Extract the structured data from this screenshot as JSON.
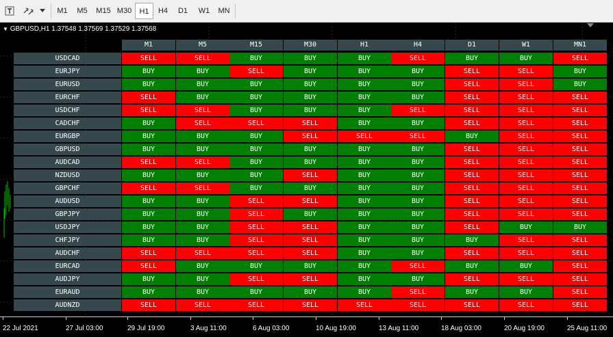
{
  "toolbar": {
    "timeframes": [
      "M1",
      "M5",
      "M15",
      "M30",
      "H1",
      "H4",
      "D1",
      "W1",
      "MN"
    ],
    "active_timeframe": "H1"
  },
  "chart": {
    "title": "GBPUSD,H1  1.37548 1.37569 1.37529 1.37568"
  },
  "table": {
    "columns": [
      "M1",
      "M5",
      "M15",
      "M30",
      "H1",
      "H4",
      "D1",
      "W1",
      "MN1"
    ],
    "rows": [
      {
        "symbol": "USDCAD",
        "signals": [
          "SELL",
          "SELL",
          "BUY",
          "BUY",
          "BUY",
          "SELL",
          "BUY",
          "BUY",
          "SELL"
        ]
      },
      {
        "symbol": "EURJPY",
        "signals": [
          "BUY",
          "BUY",
          "SELL",
          "BUY",
          "BUY",
          "BUY",
          "SELL",
          "SELL",
          "BUY"
        ]
      },
      {
        "symbol": "EURUSD",
        "signals": [
          "BUY",
          "BUY",
          "BUY",
          "BUY",
          "BUY",
          "BUY",
          "SELL",
          "SELL",
          "BUY"
        ]
      },
      {
        "symbol": "EURCHF",
        "signals": [
          "SELL",
          "BUY",
          "BUY",
          "BUY",
          "BUY",
          "BUY",
          "SELL",
          "SELL",
          "SELL"
        ]
      },
      {
        "symbol": "USDCHF",
        "signals": [
          "SELL",
          "SELL",
          "BUY",
          "BUY",
          "BUY",
          "SELL",
          "SELL",
          "SELL",
          "SELL"
        ]
      },
      {
        "symbol": "CADCHF",
        "signals": [
          "BUY",
          "SELL",
          "SELL",
          "SELL",
          "BUY",
          "BUY",
          "SELL",
          "SELL",
          "SELL"
        ]
      },
      {
        "symbol": "EURGBP",
        "signals": [
          "BUY",
          "BUY",
          "BUY",
          "SELL",
          "SELL",
          "SELL",
          "BUY",
          "SELL",
          "SELL"
        ]
      },
      {
        "symbol": "GBPUSD",
        "signals": [
          "BUY",
          "BUY",
          "BUY",
          "BUY",
          "BUY",
          "BUY",
          "SELL",
          "SELL",
          "SELL"
        ]
      },
      {
        "symbol": "AUDCAD",
        "signals": [
          "SELL",
          "SELL",
          "BUY",
          "BUY",
          "BUY",
          "BUY",
          "SELL",
          "SELL",
          "SELL"
        ]
      },
      {
        "symbol": "NZDUSD",
        "signals": [
          "BUY",
          "BUY",
          "BUY",
          "SELL",
          "BUY",
          "BUY",
          "SELL",
          "SELL",
          "SELL"
        ]
      },
      {
        "symbol": "GBPCHF",
        "signals": [
          "SELL",
          "SELL",
          "BUY",
          "BUY",
          "BUY",
          "BUY",
          "SELL",
          "SELL",
          "SELL"
        ]
      },
      {
        "symbol": "AUDUSD",
        "signals": [
          "BUY",
          "BUY",
          "SELL",
          "SELL",
          "BUY",
          "BUY",
          "SELL",
          "SELL",
          "SELL"
        ]
      },
      {
        "symbol": "GBPJPY",
        "signals": [
          "BUY",
          "BUY",
          "SELL",
          "BUY",
          "BUY",
          "BUY",
          "SELL",
          "SELL",
          "SELL"
        ]
      },
      {
        "symbol": "USDJPY",
        "signals": [
          "BUY",
          "BUY",
          "SELL",
          "SELL",
          "BUY",
          "BUY",
          "SELL",
          "BUY",
          "BUY"
        ]
      },
      {
        "symbol": "CHFJPY",
        "signals": [
          "BUY",
          "BUY",
          "SELL",
          "SELL",
          "BUY",
          "BUY",
          "BUY",
          "SELL",
          "SELL"
        ]
      },
      {
        "symbol": "AUDCHF",
        "signals": [
          "SELL",
          "SELL",
          "SELL",
          "SELL",
          "BUY",
          "BUY",
          "SELL",
          "SELL",
          "SELL"
        ]
      },
      {
        "symbol": "EURCAD",
        "signals": [
          "SELL",
          "BUY",
          "BUY",
          "BUY",
          "BUY",
          "SELL",
          "BUY",
          "BUY",
          "SELL"
        ]
      },
      {
        "symbol": "AUDJPY",
        "signals": [
          "BUY",
          "BUY",
          "SELL",
          "SELL",
          "BUY",
          "BUY",
          "SELL",
          "SELL",
          "SELL"
        ]
      },
      {
        "symbol": "EURAUD",
        "signals": [
          "BUY",
          "BUY",
          "BUY",
          "BUY",
          "BUY",
          "SELL",
          "BUY",
          "BUY",
          "SELL"
        ]
      },
      {
        "symbol": "AUDNZD",
        "signals": [
          "SELL",
          "SELL",
          "SELL",
          "SELL",
          "SELL",
          "SELL",
          "SELL",
          "SELL",
          "SELL"
        ]
      }
    ]
  },
  "x_axis": {
    "labels": [
      "22 Jul 2021",
      "27 Jul 03:00",
      "29 Jul 19:00",
      "3 Aug 11:00",
      "6 Aug 03:00",
      "10 Aug 19:00",
      "13 Aug 11:00",
      "18 Aug 03:00",
      "20 Aug 19:00",
      "25 Aug 11:00"
    ]
  },
  "colors": {
    "buy": "#007f00",
    "sell": "#ff0000",
    "header": "#36484e",
    "chart_bg": "#000000"
  }
}
